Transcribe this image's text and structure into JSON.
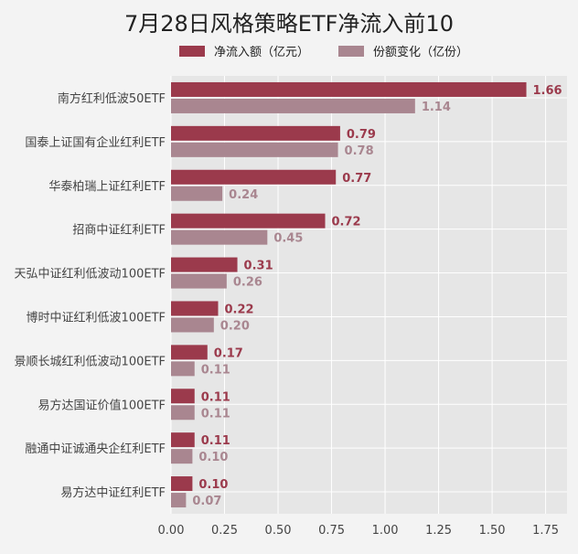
{
  "chart_data": {
    "type": "bar",
    "orientation": "horizontal",
    "title": "7月28日风格策略ETF净流入前10",
    "categories": [
      "南方红利低波50ETF",
      "国泰上证国有企业红利ETF",
      "华泰柏瑞上证红利ETF",
      "招商中证红利ETF",
      "天弘中证红利低波动100ETF",
      "博时中证红利低波100ETF",
      "景顺长城红利低波动100ETF",
      "易方达国证价值100ETF",
      "融通中证诚通央企红利ETF",
      "易方达中证红利ETF"
    ],
    "series": [
      {
        "name": "净流入额（亿元）",
        "values": [
          1.66,
          0.79,
          0.77,
          0.72,
          0.31,
          0.22,
          0.17,
          0.11,
          0.11,
          0.1
        ],
        "labels": [
          "1.66",
          "0.79",
          "0.77",
          "0.72",
          "0.31",
          "0.22",
          "0.17",
          "0.11",
          "0.11",
          "0.10"
        ],
        "color": "#9b3a4c"
      },
      {
        "name": "份额变化（亿份）",
        "values": [
          1.14,
          0.78,
          0.24,
          0.45,
          0.26,
          0.2,
          0.11,
          0.11,
          0.1,
          0.07
        ],
        "labels": [
          "1.14",
          "0.78",
          "0.24",
          "0.45",
          "0.26",
          "0.20",
          "0.11",
          "0.11",
          "0.10",
          "0.07"
        ],
        "color": "#a98690"
      }
    ],
    "x_ticks": [
      "0.00",
      "0.25",
      "0.50",
      "0.75",
      "1.00",
      "1.25",
      "1.50",
      "1.75"
    ],
    "xlim": [
      0,
      1.85
    ],
    "grid": true,
    "legend_position": "top"
  },
  "colors": {
    "plot_background": "#e6e6e6",
    "page_background": "#f3f3f3",
    "grid": "#ffffff"
  }
}
